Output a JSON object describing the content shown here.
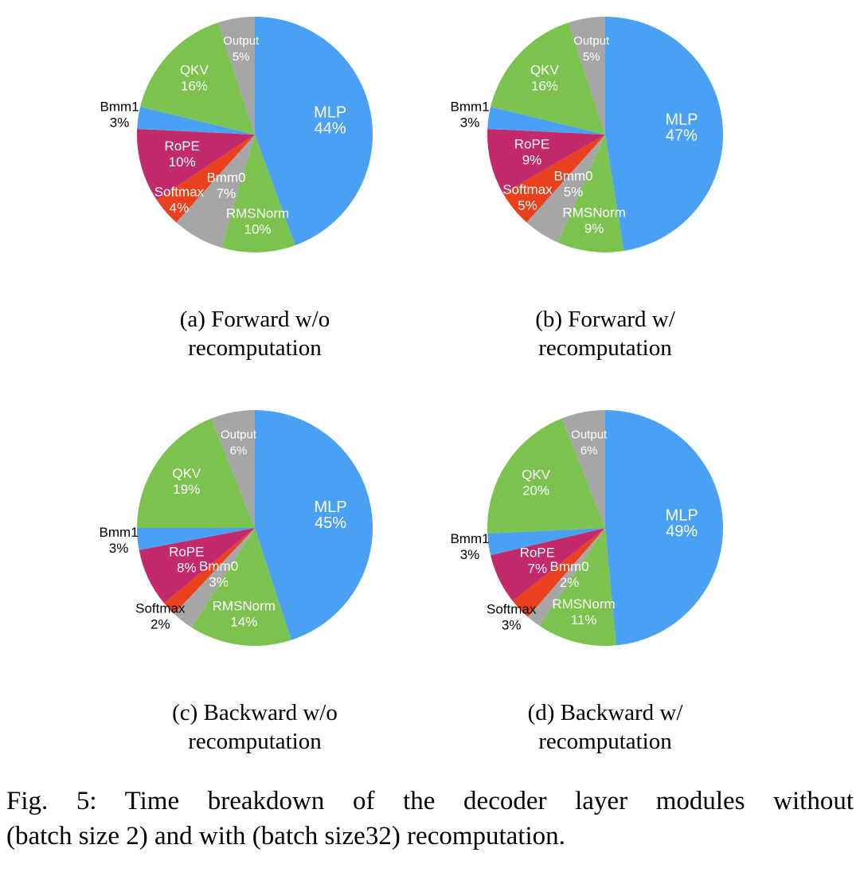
{
  "figure": {
    "caption_lines": [
      "Fig. 5: Time breakdown of the decoder layer modules without",
      "(batch size 2) and with (batch size32) recomputation."
    ]
  },
  "palette": {
    "blue": "#4aa1f3",
    "green": "#7cc24e",
    "gray": "#a6a6a6",
    "red": "#e9401d",
    "magenta": "#c22a6b",
    "inside_label": "#ffffff",
    "outside_label": "#000000"
  },
  "chart_data": [
    {
      "type": "pie",
      "id": "a",
      "caption_lines": [
        "(a) Forward w/o",
        "recomputation"
      ],
      "slices": [
        {
          "name": "MLP",
          "value": 44,
          "color": "blue",
          "label_pos": "inside"
        },
        {
          "name": "RMSNorm",
          "value": 10,
          "color": "green",
          "label_pos": "inside"
        },
        {
          "name": "Bmm0",
          "value": 7,
          "color": "gray",
          "label_pos": "inside"
        },
        {
          "name": "Softmax",
          "value": 4,
          "color": "red",
          "label_pos": "inside"
        },
        {
          "name": "RoPE",
          "value": 10,
          "color": "magenta",
          "label_pos": "inside"
        },
        {
          "name": "Bmm1",
          "value": 3,
          "color": "blue",
          "label_pos": "outside"
        },
        {
          "name": "QKV",
          "value": 16,
          "color": "green",
          "label_pos": "inside"
        },
        {
          "name": "Output",
          "value": 5,
          "color": "gray",
          "label_pos": "inside"
        }
      ]
    },
    {
      "type": "pie",
      "id": "b",
      "caption_lines": [
        "(b) Forward w/",
        "recomputation"
      ],
      "slices": [
        {
          "name": "MLP",
          "value": 47,
          "color": "blue",
          "label_pos": "inside"
        },
        {
          "name": "RMSNorm",
          "value": 9,
          "color": "green",
          "label_pos": "inside"
        },
        {
          "name": "Bmm0",
          "value": 5,
          "color": "gray",
          "label_pos": "inside"
        },
        {
          "name": "Softmax",
          "value": 5,
          "color": "red",
          "label_pos": "inside"
        },
        {
          "name": "RoPE",
          "value": 9,
          "color": "magenta",
          "label_pos": "inside"
        },
        {
          "name": "Bmm1",
          "value": 3,
          "color": "blue",
          "label_pos": "outside"
        },
        {
          "name": "QKV",
          "value": 16,
          "color": "green",
          "label_pos": "inside"
        },
        {
          "name": "Output",
          "value": 5,
          "color": "gray",
          "label_pos": "inside"
        }
      ]
    },
    {
      "type": "pie",
      "id": "c",
      "caption_lines": [
        "(c) Backward w/o",
        "recomputation"
      ],
      "slices": [
        {
          "name": "MLP",
          "value": 45,
          "color": "blue",
          "label_pos": "inside"
        },
        {
          "name": "RMSNorm",
          "value": 14,
          "color": "green",
          "label_pos": "inside"
        },
        {
          "name": "Bmm0",
          "value": 3,
          "color": "gray",
          "label_pos": "inside"
        },
        {
          "name": "Softmax",
          "value": 2,
          "color": "red",
          "label_pos": "outside"
        },
        {
          "name": "RoPE",
          "value": 8,
          "color": "magenta",
          "label_pos": "inside"
        },
        {
          "name": "Bmm1",
          "value": 3,
          "color": "blue",
          "label_pos": "outside"
        },
        {
          "name": "QKV",
          "value": 19,
          "color": "green",
          "label_pos": "inside"
        },
        {
          "name": "Output",
          "value": 6,
          "color": "gray",
          "label_pos": "inside"
        }
      ]
    },
    {
      "type": "pie",
      "id": "d",
      "caption_lines": [
        "(d) Backward w/",
        "recomputation"
      ],
      "slices": [
        {
          "name": "MLP",
          "value": 49,
          "color": "blue",
          "label_pos": "inside"
        },
        {
          "name": "RMSNorm",
          "value": 11,
          "color": "green",
          "label_pos": "inside"
        },
        {
          "name": "Bmm0",
          "value": 2,
          "color": "gray",
          "label_pos": "inside"
        },
        {
          "name": "Softmax",
          "value": 3,
          "color": "red",
          "label_pos": "outside"
        },
        {
          "name": "RoPE",
          "value": 7,
          "color": "magenta",
          "label_pos": "inside"
        },
        {
          "name": "Bmm1",
          "value": 3,
          "color": "blue",
          "label_pos": "outside"
        },
        {
          "name": "QKV",
          "value": 20,
          "color": "green",
          "label_pos": "inside"
        },
        {
          "name": "Output",
          "value": 6,
          "color": "gray",
          "label_pos": "inside"
        }
      ]
    }
  ]
}
